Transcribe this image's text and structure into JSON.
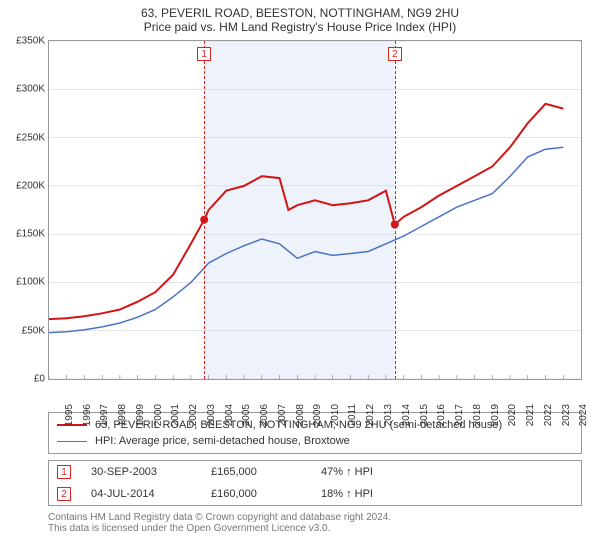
{
  "title_line1": "63, PEVERIL ROAD, BEESTON, NOTTINGHAM, NG9 2HU",
  "title_line2": "Price paid vs. HM Land Registry's House Price Index (HPI)",
  "chart": {
    "type": "line",
    "background_color": "#ffffff",
    "border_color": "#999999",
    "shade_color": "#eef2fa",
    "shade_x_from": 2003.75,
    "shade_x_to": 2014.5,
    "y": {
      "min": 0,
      "max": 350000,
      "step": 50000,
      "prefix": "£",
      "suffix": "K",
      "divisor": 1000
    },
    "x": {
      "min": 1995,
      "max": 2025,
      "ticks": [
        1995,
        1996,
        1997,
        1998,
        1999,
        2000,
        2001,
        2002,
        2003,
        2004,
        2005,
        2006,
        2007,
        2008,
        2009,
        2010,
        2011,
        2012,
        2013,
        2014,
        2015,
        2016,
        2017,
        2018,
        2019,
        2020,
        2021,
        2022,
        2023,
        2024
      ]
    },
    "series": [
      {
        "name": "63, PEVERIL ROAD, BEESTON, NOTTINGHAM, NG9 2HU (semi-detached house)",
        "color": "#d11515",
        "width": 2,
        "data": [
          [
            1995,
            62000
          ],
          [
            1996,
            63000
          ],
          [
            1997,
            65000
          ],
          [
            1998,
            68000
          ],
          [
            1999,
            72000
          ],
          [
            2000,
            80000
          ],
          [
            2001,
            90000
          ],
          [
            2002,
            108000
          ],
          [
            2003,
            140000
          ],
          [
            2003.75,
            165000
          ],
          [
            2004,
            175000
          ],
          [
            2005,
            195000
          ],
          [
            2006,
            200000
          ],
          [
            2007,
            210000
          ],
          [
            2008,
            208000
          ],
          [
            2008.5,
            175000
          ],
          [
            2009,
            180000
          ],
          [
            2010,
            185000
          ],
          [
            2011,
            180000
          ],
          [
            2012,
            182000
          ],
          [
            2013,
            185000
          ],
          [
            2014,
            195000
          ],
          [
            2014.5,
            160000
          ],
          [
            2015,
            168000
          ],
          [
            2016,
            178000
          ],
          [
            2017,
            190000
          ],
          [
            2018,
            200000
          ],
          [
            2019,
            210000
          ],
          [
            2020,
            220000
          ],
          [
            2021,
            240000
          ],
          [
            2022,
            265000
          ],
          [
            2023,
            285000
          ],
          [
            2024,
            280000
          ]
        ]
      },
      {
        "name": "HPI: Average price, semi-detached house, Broxtowe",
        "color": "#4a74c9",
        "width": 1.5,
        "data": [
          [
            1995,
            48000
          ],
          [
            1996,
            49000
          ],
          [
            1997,
            51000
          ],
          [
            1998,
            54000
          ],
          [
            1999,
            58000
          ],
          [
            2000,
            64000
          ],
          [
            2001,
            72000
          ],
          [
            2002,
            85000
          ],
          [
            2003,
            100000
          ],
          [
            2004,
            120000
          ],
          [
            2005,
            130000
          ],
          [
            2006,
            138000
          ],
          [
            2007,
            145000
          ],
          [
            2008,
            140000
          ],
          [
            2009,
            125000
          ],
          [
            2010,
            132000
          ],
          [
            2011,
            128000
          ],
          [
            2012,
            130000
          ],
          [
            2013,
            132000
          ],
          [
            2014,
            140000
          ],
          [
            2015,
            148000
          ],
          [
            2016,
            158000
          ],
          [
            2017,
            168000
          ],
          [
            2018,
            178000
          ],
          [
            2019,
            185000
          ],
          [
            2020,
            192000
          ],
          [
            2021,
            210000
          ],
          [
            2022,
            230000
          ],
          [
            2023,
            238000
          ],
          [
            2024,
            240000
          ]
        ]
      }
    ],
    "markers": [
      {
        "id": "1",
        "x": 2003.75,
        "y": 165000,
        "date": "30-SEP-2003",
        "price": "£165,000",
        "rel": "47% ↑ HPI"
      },
      {
        "id": "2",
        "x": 2014.5,
        "y": 160000,
        "date": "04-JUL-2014",
        "price": "£160,000",
        "rel": "18% ↑ HPI"
      }
    ]
  },
  "footer": {
    "line1": "Contains HM Land Registry data © Crown copyright and database right 2024.",
    "line2": "This data is licensed under the Open Government Licence v3.0."
  }
}
